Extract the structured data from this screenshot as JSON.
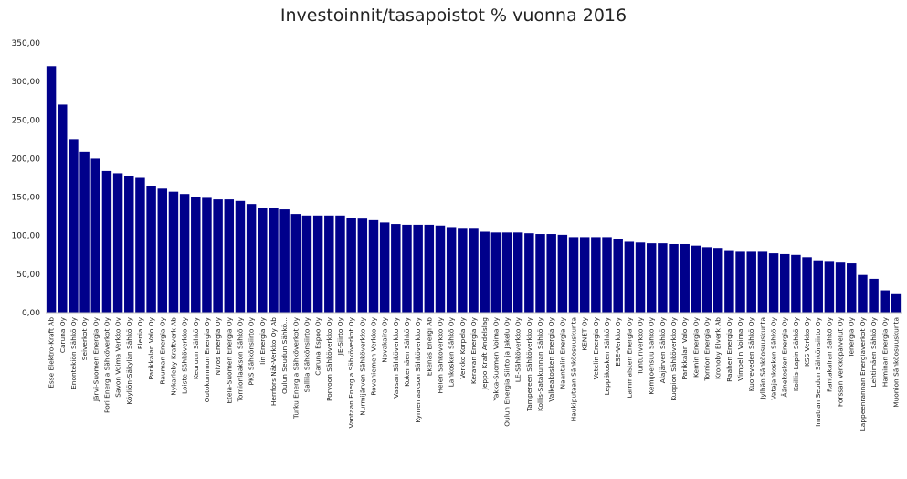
{
  "chart_data": {
    "type": "bar",
    "title": "Investoinnit/tasapoistot % vuonna 2016",
    "xlabel": "",
    "ylabel": "",
    "ylim": [
      0,
      350
    ],
    "yticks": [
      "0,00",
      "50,00",
      "100,00",
      "150,00",
      "200,00",
      "250,00",
      "300,00",
      "350,00"
    ],
    "grid": false,
    "color": "#00008b",
    "categories": [
      "Esse Elektro-Kraft Ab",
      "Caruna Oy",
      "Enontekiön Sähkö Oy",
      "Seiverkot Oy",
      "Järvi-Suomen Energia Oy",
      "Pori Energia Sähköverkot Oy",
      "Savon Voima Verkko Oy",
      "Köyliön-Säkylän Sähkö Oy",
      "Elenia Oy",
      "Parikkalan Valo Oy",
      "Rauman Energia Oy",
      "Nykarleby Kraftverk Ab",
      "Loiste Sähköverkko Oy",
      "Keuruun Sähkö Oy",
      "Outokummun Energia Oy",
      "Nivos Energia Oy",
      "Etelä-Suomen Energia Oy",
      "Tornionlaakson Sähkö Oy",
      "PKS Sähkönsiirto Oy",
      "Iin Energia Oy",
      "Herrfors Nät-Verkko Oy Ab",
      "Oulun Seudun Sähkö...",
      "Turku Energia Sähköverkot Oy",
      "Sallila Sähkönsiirto Oy",
      "Caruna Espoo Oy",
      "Porvoon Sähköverkko Oy",
      "JE-Siirto Oy",
      "Vantaan Energia Sähköverkot Oy",
      "Nurmijärven Sähköverkko Oy",
      "Rovaniemen Verkko Oy",
      "Novakaira Oy",
      "Vaasan Sähköverkko Oy",
      "Kokemäen Sähkö Oy",
      "Kymenlaakson Sähköverkko Oy",
      "Ekenäs Energi Ab",
      "Helen Sähköverkko Oy",
      "Lankosken Sähkö Oy",
      "Verkko Korpela Oy",
      "Keravan Energia Oy",
      "Jeppo Kraft Andelslag",
      "Yakka-Suomen Voima Oy",
      "Oulun Energia Siirto ja Jakelu Oy",
      "LE-Sähköverkko Oy",
      "Tampereen Sähköverkko Oy",
      "Kollis-Satakunnan Sähkö Oy",
      "Valkeakosken Energia Oy",
      "Naantalin Energia Oy",
      "Haukiputaan Sähköosuuskunta",
      "KENET Oy",
      "Vetelin Energia Oy",
      "Leppäkosken Sähkö Oy",
      "ESE-Verkko Oy",
      "Lammaisten Energia Oy",
      "Tunturiverkko Oy",
      "Kemijoensuu Sähkö Oy",
      "Alajärven Sähkö Oy",
      "Kuopion Sähköverkko Oy",
      "Parikkalan Valo Oy",
      "Kemin Energia Oy",
      "Tornion Energia Oy",
      "Kronoby Elverk Ab",
      "Raahen Energia Oy",
      "Vimpelin Voima Oy",
      "Kuoreveden Sähkö Oy",
      "Jylhän Sähköosuuskunta",
      "Vatajankosken Sähkö Oy",
      "Äänekosken Energia Oy",
      "Koillis-Lapin Sähkö Oy",
      "KSS Verkko Oy",
      "Imatran Seudun Sähkönsiirto Oy",
      "Rantakairan Sähkö Oy",
      "Forssan Verkkopalvelut Oy",
      "Tenergia Oy",
      "Lappeenrannan Energiaverkot Oy",
      "Lehtimäen Sähkö Oy",
      "Haminan Energia Oy",
      "Muonion Sähköosuuskunta"
    ],
    "values": [
      320,
      270,
      225,
      209,
      200,
      184,
      181,
      177,
      175,
      164,
      161,
      157,
      154,
      150,
      149,
      147,
      147,
      145,
      141,
      136,
      136,
      134,
      128,
      126,
      126,
      126,
      126,
      123,
      122,
      120,
      117,
      115,
      114,
      114,
      114,
      113,
      111,
      110,
      110,
      105,
      104,
      104,
      104,
      103,
      102,
      102,
      101,
      98,
      98,
      98,
      98,
      96,
      92,
      91,
      90,
      90,
      89,
      89,
      87,
      85,
      84,
      80,
      79,
      79,
      79,
      77,
      76,
      75,
      72,
      68,
      66,
      65,
      64,
      49,
      44,
      29,
      24
    ]
  }
}
